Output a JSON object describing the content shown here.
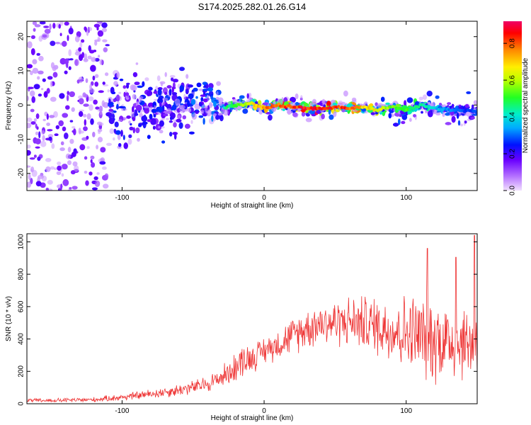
{
  "title": "S174.2025.282.01.26.G14",
  "chart_data": [
    {
      "type": "heatmap",
      "name": "spectrogram",
      "xlabel": "Height of straight line (km)",
      "ylabel": "Frequency (Hz)",
      "xlim": [
        -167,
        150
      ],
      "ylim": [
        -25,
        24.5
      ],
      "xticks": [
        -100,
        0,
        100
      ],
      "yticks": [
        -20,
        -10,
        0,
        10,
        20
      ],
      "xtick_labels": [
        "-100",
        "0",
        "100"
      ],
      "ytick_labels": [
        "-20",
        "-10",
        "0",
        "10",
        "20"
      ],
      "colorbar": {
        "label": "Normalized spectral amplitude",
        "range": [
          0,
          0.92
        ],
        "ticks": [
          0.0,
          0.2,
          0.4,
          0.6,
          0.8
        ],
        "tick_labels": [
          "0.0",
          "0.2",
          "0.4",
          "0.6",
          "0.8"
        ]
      },
      "ridge": {
        "description_x": [
          -30,
          -20,
          -10,
          0,
          10,
          20,
          30,
          40,
          50,
          60,
          70,
          80,
          90,
          100,
          110,
          120,
          130,
          140,
          150
        ],
        "frequency": [
          -1,
          0,
          0.5,
          -1,
          0,
          -0.5,
          -1,
          -1,
          -0.5,
          -1,
          -0.5,
          -1.5,
          -0.5,
          -1.5,
          0,
          -1,
          -1.5,
          -1.5,
          -2
        ],
        "amplitude": [
          0.45,
          0.55,
          0.7,
          0.8,
          0.85,
          0.88,
          0.92,
          0.92,
          0.9,
          0.85,
          0.75,
          0.7,
          0.6,
          0.55,
          0.5,
          0.4,
          0.35,
          0.3,
          0.3
        ]
      }
    },
    {
      "type": "line",
      "name": "snr",
      "xlabel": "Height of straight line (km)",
      "ylabel": "SNR (10 * v/v)",
      "xlim": [
        -167,
        150
      ],
      "ylim": [
        0,
        1050
      ],
      "xticks": [
        -100,
        0,
        100
      ],
      "yticks": [
        0,
        200,
        400,
        600,
        800,
        1000
      ],
      "xtick_labels": [
        "-100",
        "0",
        "100"
      ],
      "ytick_labels": [
        "0",
        "200",
        "400",
        "600",
        "800",
        "1000"
      ],
      "color": "#ee3333",
      "envelope": {
        "x": [
          -167,
          -150,
          -120,
          -100,
          -80,
          -60,
          -45,
          -35,
          -25,
          -20,
          -15,
          -10,
          -5,
          0,
          10,
          20,
          30,
          40,
          50,
          60,
          70,
          80,
          90,
          100,
          110,
          120,
          130,
          140,
          150
        ],
        "mean": [
          20,
          20,
          25,
          40,
          60,
          85,
          110,
          140,
          190,
          230,
          270,
          280,
          300,
          330,
          370,
          420,
          470,
          500,
          500,
          510,
          500,
          480,
          460,
          440,
          420,
          400,
          390,
          380,
          370
        ],
        "spread": [
          15,
          15,
          18,
          25,
          35,
          45,
          55,
          70,
          90,
          110,
          120,
          110,
          100,
          100,
          110,
          130,
          150,
          160,
          170,
          180,
          200,
          220,
          250,
          280,
          310,
          320,
          300,
          280,
          260
        ]
      },
      "peaks": [
        {
          "x": 115,
          "y": 960
        },
        {
          "x": 135,
          "y": 905
        },
        {
          "x": 148,
          "y": 1040
        }
      ]
    }
  ]
}
